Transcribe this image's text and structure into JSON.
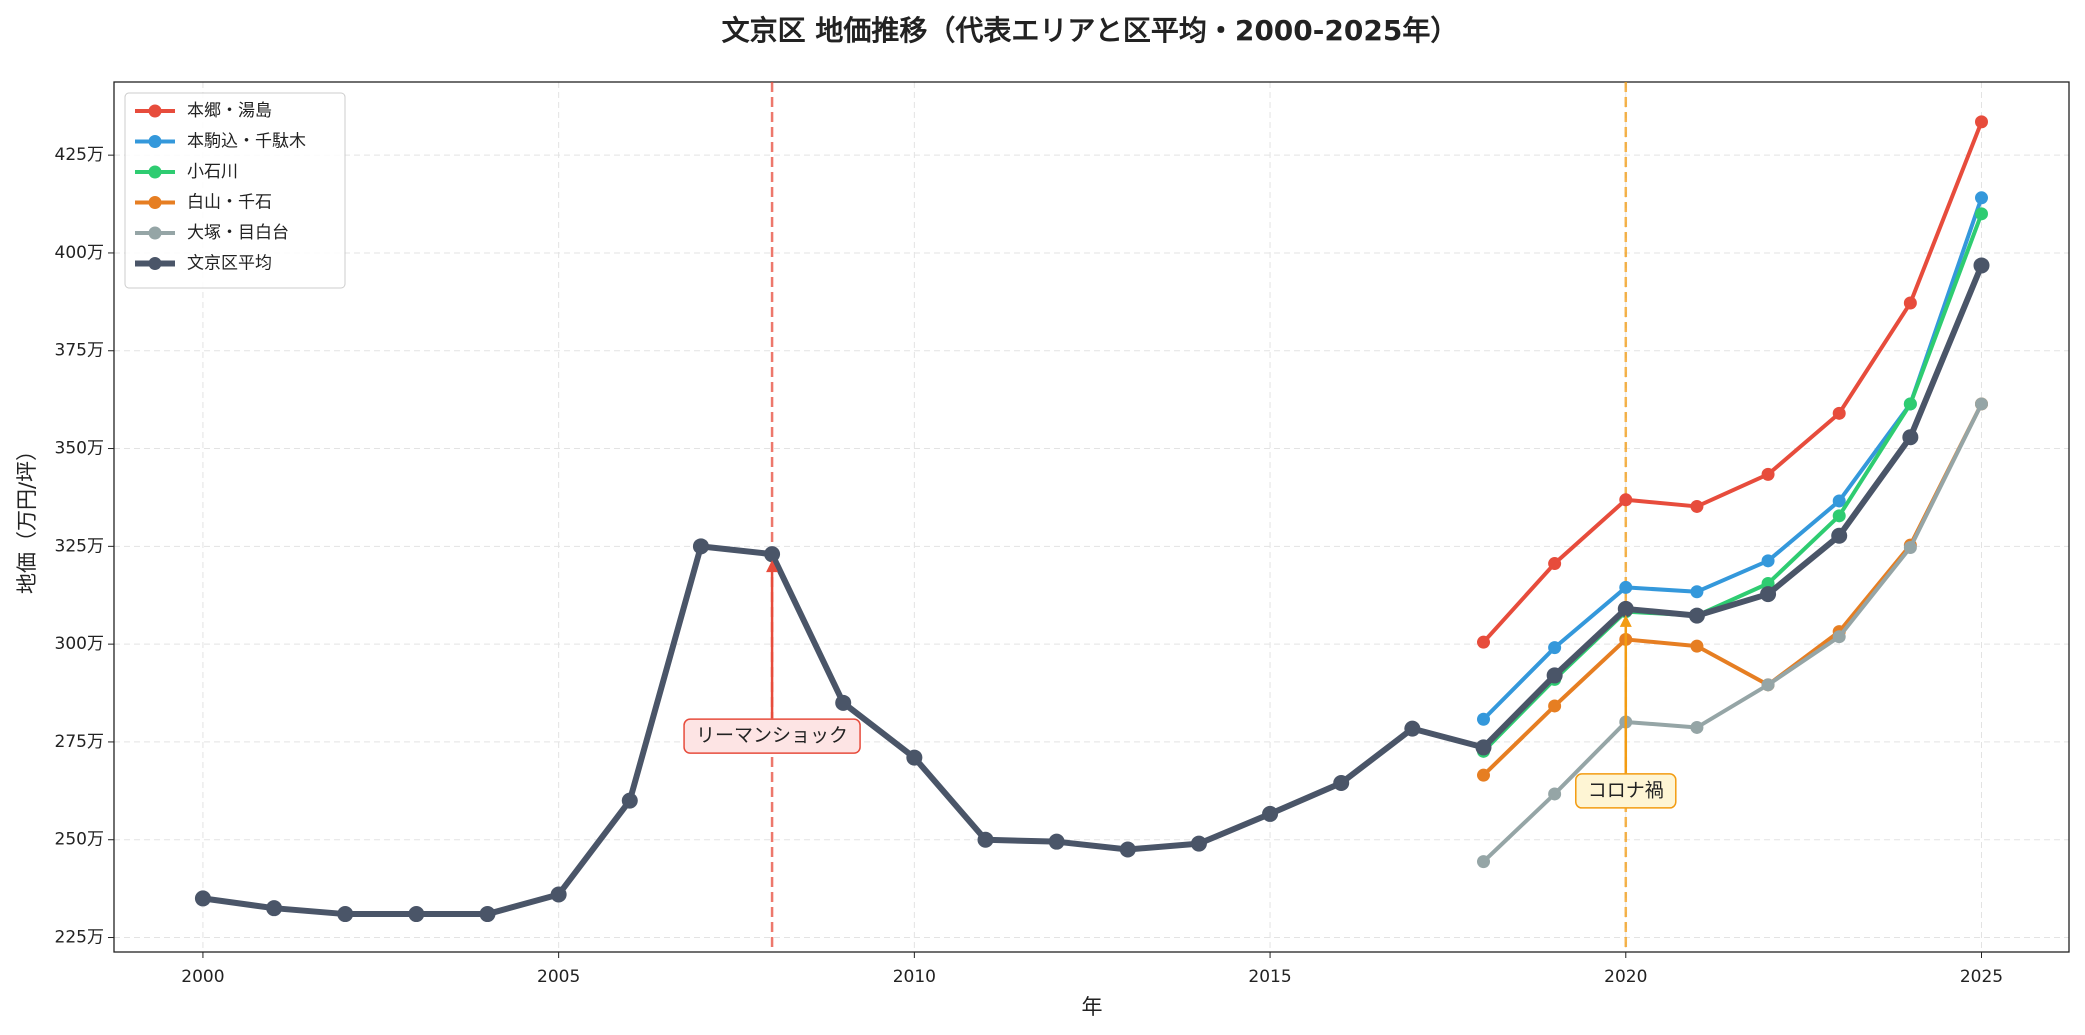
{
  "chart_data": {
    "type": "line",
    "title": "文京区 地価推移（代表エリアと区平均・2000-2025年）",
    "xlabel": "年",
    "ylabel": "地価（万円/坪）",
    "x": [
      2000,
      2001,
      2002,
      2003,
      2004,
      2005,
      2006,
      2007,
      2008,
      2009,
      2010,
      2011,
      2012,
      2013,
      2014,
      2015,
      2016,
      2017,
      2018,
      2019,
      2020,
      2021,
      2022,
      2023,
      2024,
      2025
    ],
    "xlim": [
      1998.75,
      2026.23
    ],
    "xticks": [
      2000,
      2005,
      2010,
      2015,
      2020,
      2025
    ],
    "ylim": [
      221.3,
      443.7
    ],
    "yticks": [
      {
        "value": 225,
        "label": "225万"
      },
      {
        "value": 250,
        "label": "250万"
      },
      {
        "value": 275,
        "label": "275万"
      },
      {
        "value": 300,
        "label": "300万"
      },
      {
        "value": 325,
        "label": "325万"
      },
      {
        "value": 350,
        "label": "350万"
      },
      {
        "value": 375,
        "label": "375万"
      },
      {
        "value": 400,
        "label": "400万"
      },
      {
        "value": 425,
        "label": "425万"
      }
    ],
    "grid": true,
    "legend": "upper left",
    "series": [
      {
        "name": "本郷・湯島",
        "color": "#e74c3c",
        "values": [
          null,
          null,
          null,
          null,
          null,
          null,
          null,
          null,
          null,
          null,
          null,
          null,
          null,
          null,
          null,
          null,
          null,
          null,
          300.5,
          320.6,
          336.9,
          335.2,
          343.4,
          359,
          387.2,
          433.5
        ]
      },
      {
        "name": "本駒込・千駄木",
        "color": "#3498db",
        "values": [
          null,
          null,
          null,
          null,
          null,
          null,
          null,
          null,
          null,
          null,
          null,
          null,
          null,
          null,
          null,
          null,
          null,
          null,
          280.8,
          299.1,
          314.5,
          313.4,
          321.3,
          336.6,
          361.4,
          414.1
        ]
      },
      {
        "name": "小石川",
        "color": "#2ecc71",
        "values": [
          null,
          null,
          null,
          null,
          null,
          null,
          null,
          null,
          null,
          null,
          null,
          null,
          null,
          null,
          null,
          null,
          null,
          null,
          272.6,
          291,
          308.3,
          307.3,
          315.5,
          332.8,
          361.4,
          410
        ]
      },
      {
        "name": "白山・千石",
        "color": "#e67e22",
        "values": [
          null,
          null,
          null,
          null,
          null,
          null,
          null,
          null,
          null,
          null,
          null,
          null,
          null,
          null,
          null,
          null,
          null,
          null,
          266.5,
          284.2,
          301.2,
          299.5,
          289.6,
          303.2,
          325.3,
          361.4
        ]
      },
      {
        "name": "大塚・目白台",
        "color": "#95a5a6",
        "values": [
          null,
          null,
          null,
          null,
          null,
          null,
          null,
          null,
          null,
          null,
          null,
          null,
          null,
          null,
          null,
          null,
          null,
          null,
          244.4,
          261.7,
          280.1,
          278.7,
          289.6,
          301.9,
          324.7,
          361.4
        ]
      },
      {
        "name": "文京区平均",
        "color": "#4a5568",
        "values": [
          235,
          232.5,
          231,
          231,
          231,
          236,
          260,
          325,
          323,
          285,
          271,
          250,
          249.5,
          247.5,
          249,
          256.6,
          264.5,
          278.4,
          273.6,
          292,
          309,
          307.3,
          312.8,
          327.7,
          352.9,
          396.8
        ]
      }
    ],
    "annotations": [
      {
        "text": "リーマンショック",
        "x": 2008,
        "color": "#e74c3c",
        "fill": "#fde4e4"
      },
      {
        "text": "コロナ禍",
        "x": 2020,
        "color": "#f39c12",
        "fill": "#fef5d4"
      }
    ]
  }
}
